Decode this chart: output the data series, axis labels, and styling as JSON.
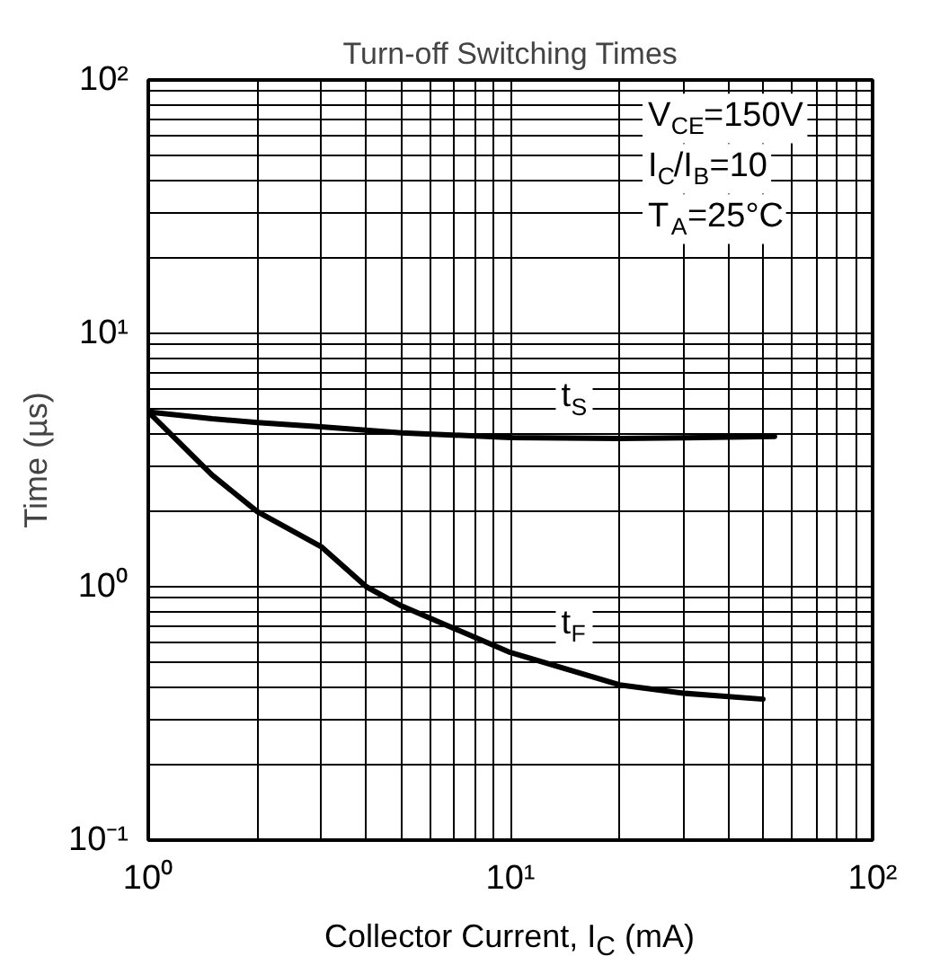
{
  "chart_data": {
    "type": "line",
    "title": "Turn-off Switching Times",
    "xlabel": "Collector Current, I$_{C}$ (mA)",
    "ylabel": "Time (µs)",
    "series": [
      {
        "name": "t$_{S}$",
        "color": "#000000",
        "x": [
          1,
          1.5,
          2,
          3,
          5,
          10,
          20,
          30,
          53.6
        ],
        "values": [
          4.9,
          4.6,
          4.45,
          4.28,
          4.05,
          3.88,
          3.85,
          3.87,
          3.92
        ]
      },
      {
        "name": "t$_{F}$",
        "color": "#000000",
        "x": [
          1,
          1.5,
          2,
          3,
          4,
          5,
          10,
          20,
          30,
          49.8
        ],
        "values": [
          4.9,
          2.76,
          1.98,
          1.44,
          1.0,
          0.84,
          0.55,
          0.41,
          0.38,
          0.36
        ]
      }
    ],
    "annotations": [
      "V$_{CE}$=150V",
      "I$_{C}$/I$_{B}$=10",
      "T$_{A}$=25°C"
    ],
    "log": "xy",
    "xlim": [
      1,
      100
    ],
    "ylim": [
      0.1,
      100
    ],
    "xticks": [
      {
        "value": 1,
        "label": "10⁰"
      },
      {
        "value": 10,
        "label": "10¹"
      },
      {
        "value": 100,
        "label": "10²"
      }
    ],
    "yticks": [
      {
        "value": 0.1,
        "label": "10⁻¹"
      },
      {
        "value": 1,
        "label": "10⁰"
      },
      {
        "value": 10,
        "label": "10¹"
      },
      {
        "value": 100,
        "label": "10²"
      }
    ],
    "grid": true,
    "line_style": "solid",
    "marker": "none"
  }
}
